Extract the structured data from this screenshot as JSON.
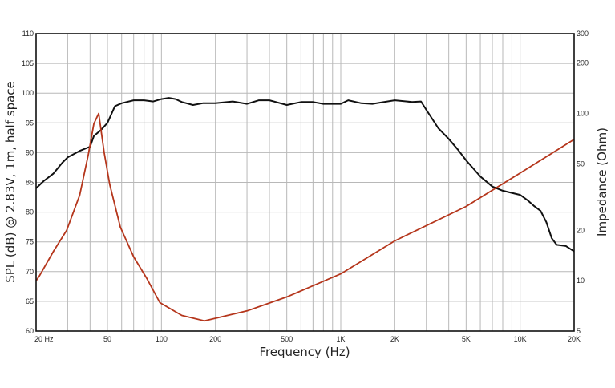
{
  "chart_data": {
    "type": "line",
    "title": "",
    "xlabel": "Frequency (Hz)",
    "ylabel": "SPL (dB) @ 2.83V, 1m, half space",
    "y2label": "Impedance (Ohm)",
    "xscale": "log",
    "xlim": [
      20,
      20000
    ],
    "ylim": [
      60,
      110
    ],
    "y2scale": "log",
    "y2lim": [
      5,
      300
    ],
    "grid": true,
    "x_ticks": [
      {
        "value": 20,
        "label": "20  Hz"
      },
      {
        "value": 50,
        "label": "50"
      },
      {
        "value": 100,
        "label": "100"
      },
      {
        "value": 200,
        "label": "200"
      },
      {
        "value": 500,
        "label": "500"
      },
      {
        "value": 1000,
        "label": "1K"
      },
      {
        "value": 2000,
        "label": "2K"
      },
      {
        "value": 5000,
        "label": "5K"
      },
      {
        "value": 10000,
        "label": "10K"
      },
      {
        "value": 20000,
        "label": "20K"
      }
    ],
    "y_ticks": [
      60,
      65,
      70,
      75,
      80,
      85,
      90,
      95,
      100,
      105,
      110
    ],
    "y2_ticks": [
      5,
      10,
      20,
      50,
      100,
      200,
      300
    ],
    "series": [
      {
        "name": "SPL",
        "axis": "left",
        "color": "#111111",
        "x": [
          20,
          22,
          25,
          28,
          30,
          35,
          40,
          42,
          46,
          50,
          55,
          60,
          70,
          80,
          90,
          100,
          110,
          120,
          130,
          150,
          170,
          200,
          250,
          300,
          350,
          400,
          500,
          600,
          700,
          800,
          1000,
          1100,
          1300,
          1500,
          2000,
          2500,
          2800,
          3000,
          3500,
          4000,
          4500,
          5000,
          6000,
          7000,
          8000,
          10000,
          11000,
          12000,
          13000,
          14000,
          15000,
          16000,
          18000,
          20000
        ],
        "values": [
          84,
          85.2,
          86.5,
          88.3,
          89.2,
          90.3,
          91,
          92.8,
          93.8,
          95,
          97.8,
          98.3,
          98.8,
          98.8,
          98.6,
          99,
          99.2,
          99,
          98.5,
          98,
          98.3,
          98.3,
          98.6,
          98.2,
          98.8,
          98.8,
          98,
          98.5,
          98.5,
          98.2,
          98.2,
          98.8,
          98.3,
          98.2,
          98.8,
          98.5,
          98.6,
          97.2,
          94.1,
          92.3,
          90.5,
          88.7,
          86,
          84.3,
          83.6,
          82.9,
          82,
          81,
          80.2,
          78.3,
          75.6,
          74.5,
          74.3,
          73.4
        ]
      },
      {
        "name": "Impedance",
        "axis": "right",
        "color": "#b5361c",
        "x": [
          20,
          21,
          25,
          29.6,
          35,
          39,
          42,
          44.7,
          48,
          51.5,
          59,
          70,
          83,
          98,
          130,
          174,
          300,
          500,
          1000,
          2000,
          5000,
          10000,
          20000
        ],
        "values": [
          10,
          10.8,
          15,
          20,
          32.5,
          56,
          87,
          100,
          58,
          37.5,
          20.9,
          13.9,
          10.3,
          7.4,
          6.2,
          5.75,
          6.6,
          8.0,
          11.0,
          17.3,
          27.8,
          44,
          70
        ]
      }
    ]
  }
}
